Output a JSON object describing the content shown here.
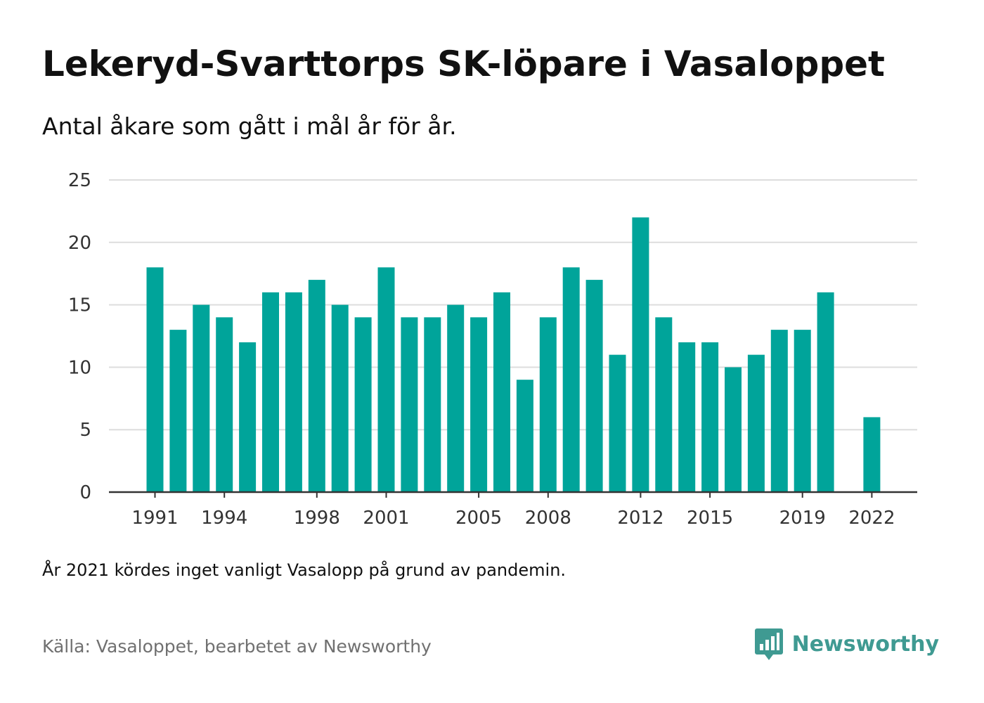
{
  "header": {
    "title": "Lekeryd-Svarttorps SK-löpare i Vasaloppet",
    "subtitle": "Antal åkare som gått i mål år för år."
  },
  "footer": {
    "note": "År 2021 kördes inget vanligt Vasalopp på grund av pandemin.",
    "source": "Källa: Vasaloppet, bearbetet av Newsworthy",
    "brand": "Newsworthy"
  },
  "icons": {
    "brand_logo": "newsworthy-logo-icon"
  },
  "colors": {
    "bar": "#00a49a",
    "grid": "#dddddd",
    "axis": "#333333",
    "brand": "#3f9a92",
    "source_text": "#707070"
  },
  "chart_data": {
    "type": "bar",
    "title": "Lekeryd-Svarttorps SK-löpare i Vasaloppet",
    "subtitle": "Antal åkare som gått i mål år för år.",
    "xlabel": "",
    "ylabel": "",
    "categories": [
      1991,
      1992,
      1993,
      1994,
      1995,
      1996,
      1997,
      1998,
      1999,
      2000,
      2001,
      2002,
      2003,
      2004,
      2005,
      2006,
      2007,
      2008,
      2009,
      2010,
      2011,
      2012,
      2013,
      2014,
      2015,
      2016,
      2017,
      2018,
      2019,
      2020,
      2021,
      2022
    ],
    "values": [
      18,
      13,
      15,
      14,
      12,
      16,
      16,
      17,
      15,
      14,
      18,
      14,
      14,
      15,
      14,
      16,
      9,
      14,
      18,
      17,
      11,
      22,
      14,
      12,
      12,
      10,
      11,
      13,
      13,
      16,
      null,
      6
    ],
    "ylim": [
      0,
      25
    ],
    "yticks": [
      0,
      5,
      10,
      15,
      20,
      25
    ],
    "xticks": [
      1991,
      1994,
      1998,
      2001,
      2005,
      2008,
      2012,
      2015,
      2019,
      2022
    ],
    "grid": true,
    "legend": "none"
  }
}
